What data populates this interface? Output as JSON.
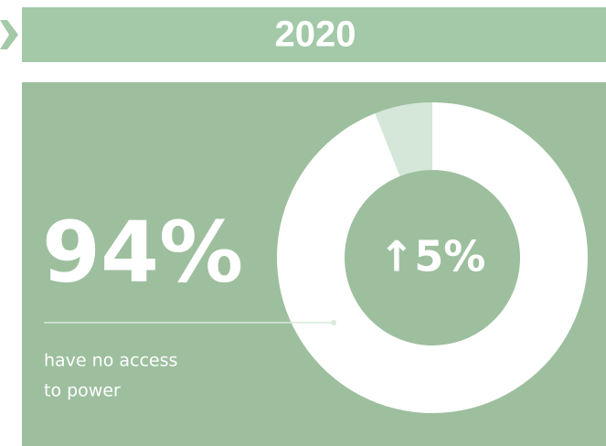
{
  "chart_data": {
    "type": "donut",
    "title": "2020",
    "values": [
      94,
      6
    ],
    "value_labels": [
      "94%",
      null
    ],
    "colors": [
      "#ffffff",
      "#d5e7d8"
    ],
    "annotation": "↑5%",
    "caption": [
      "have no access",
      "to power"
    ]
  }
}
